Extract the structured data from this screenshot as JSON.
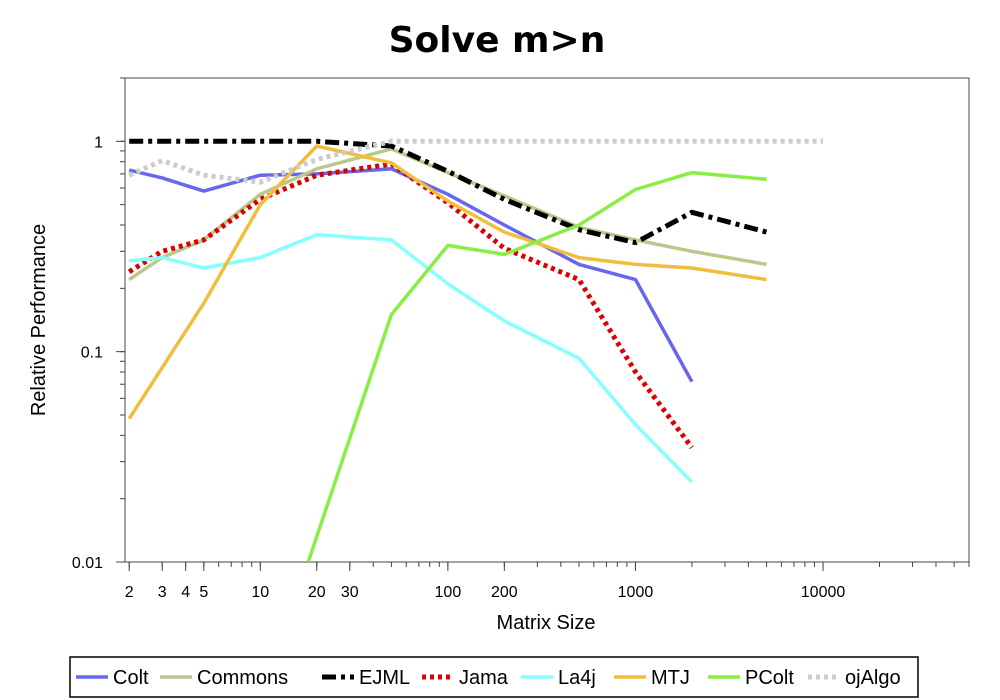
{
  "chart_data": {
    "type": "line",
    "title": "Solve m>n",
    "xlabel": "Matrix Size",
    "ylabel": "Relative Performance",
    "xscale": "log",
    "yscale": "log",
    "xlim": [
      1.9,
      60000
    ],
    "ylim": [
      0.01,
      2.0
    ],
    "x_ticks": [
      2,
      3,
      4,
      5,
      10,
      20,
      30,
      100,
      200,
      1000,
      10000
    ],
    "x_tick_labels": [
      "2",
      "3",
      "4",
      "5",
      "10",
      "20",
      "30",
      "100",
      "200",
      "1000",
      "10000"
    ],
    "y_ticks": [
      0.01,
      0.1,
      1
    ],
    "y_tick_labels": [
      "0.01",
      "0.1",
      "1"
    ],
    "grid": false,
    "legend_position": "bottom",
    "series": [
      {
        "name": "Colt",
        "color": "#6666ee",
        "dash": "solid",
        "x": [
          2,
          3,
          5,
          10,
          20,
          50,
          100,
          200,
          500,
          1000,
          2000
        ],
        "y": [
          0.73,
          0.67,
          0.58,
          0.69,
          0.7,
          0.74,
          0.56,
          0.4,
          0.26,
          0.22,
          0.072
        ]
      },
      {
        "name": "Commons",
        "color": "#b8c98a",
        "dash": "solid",
        "x": [
          2,
          3,
          5,
          10,
          20,
          50,
          100,
          200,
          500,
          1000,
          2000,
          5000
        ],
        "y": [
          0.22,
          0.28,
          0.34,
          0.56,
          0.74,
          0.92,
          0.71,
          0.55,
          0.39,
          0.34,
          0.3,
          0.26
        ]
      },
      {
        "name": "EJML",
        "color": "#000000",
        "dash": "dashdot",
        "x": [
          2,
          3,
          5,
          10,
          20,
          50,
          100,
          200,
          500,
          1000,
          2000,
          5000
        ],
        "y": [
          1.0,
          1.0,
          1.0,
          1.0,
          1.0,
          0.95,
          0.72,
          0.53,
          0.38,
          0.33,
          0.46,
          0.37
        ]
      },
      {
        "name": "Jama",
        "color": "#dd0000",
        "dash": "dotted",
        "x": [
          2,
          3,
          5,
          10,
          20,
          50,
          100,
          200,
          500,
          1000,
          2000
        ],
        "y": [
          0.24,
          0.3,
          0.34,
          0.53,
          0.69,
          0.78,
          0.51,
          0.31,
          0.22,
          0.08,
          0.035
        ]
      },
      {
        "name": "La4j",
        "color": "#88ffff",
        "dash": "solid",
        "x": [
          2,
          3,
          5,
          10,
          20,
          50,
          100,
          200,
          500,
          1000,
          2000
        ],
        "y": [
          0.27,
          0.28,
          0.25,
          0.28,
          0.36,
          0.34,
          0.21,
          0.14,
          0.093,
          0.045,
          0.024
        ]
      },
      {
        "name": "MTJ",
        "color": "#f0be3c",
        "dash": "solid",
        "x": [
          2,
          5,
          10,
          20,
          50,
          100,
          200,
          500,
          1000,
          2000,
          5000
        ],
        "y": [
          0.048,
          0.17,
          0.5,
          0.95,
          0.79,
          0.52,
          0.37,
          0.28,
          0.26,
          0.25,
          0.22
        ]
      },
      {
        "name": "PColt",
        "color": "#88ee44",
        "dash": "solid",
        "x": [
          18,
          50,
          100,
          200,
          500,
          1000,
          2000,
          5000
        ],
        "y": [
          0.01,
          0.15,
          0.32,
          0.29,
          0.4,
          0.59,
          0.71,
          0.66
        ]
      },
      {
        "name": "ojAlgo",
        "color": "#cccccc",
        "dash": "dotted",
        "x": [
          2,
          3,
          5,
          10,
          20,
          50,
          100,
          200,
          500,
          1000,
          2000,
          5000,
          10000
        ],
        "y": [
          0.69,
          0.81,
          0.69,
          0.64,
          0.82,
          1.0,
          1.0,
          1.0,
          1.0,
          1.0,
          1.0,
          1.0,
          1.0
        ]
      }
    ]
  }
}
